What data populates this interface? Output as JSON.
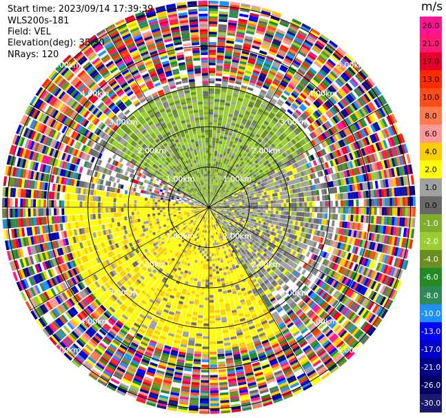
{
  "info": {
    "start_time": "Start time: 2023/09/14 17:39:39",
    "instrument": "WLS200s-181",
    "field": "Field: VEL",
    "elevation": "Elevation(deg): 35.30",
    "nrays": "NRays: 120"
  },
  "colorbar": {
    "unit": "m/s",
    "levels": [
      "26.0",
      "21.0",
      "17.0",
      "13.0",
      "10.0",
      "8.0",
      "6.0",
      "4.0",
      "2.0",
      "1.0",
      "0.0",
      "-1.0",
      "-2.0",
      "-4.0",
      "-6.0",
      "-8.0",
      "-10.0",
      "-13.0",
      "-17.0",
      "-21.0",
      "-26.0",
      "-30.0"
    ],
    "colors": [
      "#ff1493",
      "#ff1a75",
      "#e8002d",
      "#ff2a00",
      "#ff4d1a",
      "#ff7a4d",
      "#ff9999",
      "#ffcc00",
      "#ffff00",
      "#a0a0a0",
      "#696969",
      "#7fae2a",
      "#9acd32",
      "#6b8e23",
      "#228b22",
      "#2e8b57",
      "#1e90ff",
      "#0000ff",
      "#0000cd",
      "#00008b",
      "#000060",
      "#191970"
    ],
    "text_colors": [
      "#000",
      "#000",
      "#000",
      "#000",
      "#000",
      "#000",
      "#000",
      "#000",
      "#000",
      "#000",
      "#000",
      "#fff",
      "#fff",
      "#fff",
      "#fff",
      "#fff",
      "#fff",
      "#fff",
      "#fff",
      "#fff",
      "#fff",
      "#fff"
    ]
  },
  "chart_data": {
    "type": "heatmap",
    "projection": "polar-ppi",
    "field": "VEL",
    "units": "m/s",
    "nrays": 120,
    "range_rings_km": [
      1.0,
      2.0,
      3.0,
      4.0,
      5.0
    ],
    "ring_labels": [
      "1.00km",
      "2.00km",
      "3.00km",
      "4.00km",
      "5.00km"
    ],
    "radial_spokes_deg": [
      0,
      30,
      60,
      90,
      120,
      150,
      180,
      210,
      240,
      270,
      300,
      330
    ],
    "regions": [
      {
        "sector": "north",
        "range_km": [
          0,
          3.0
        ],
        "dominant_field": "-2.0 to -4.0 (green)"
      },
      {
        "sector": "south-southwest",
        "range_km": [
          0,
          3.5
        ],
        "dominant_field": "2.0 to 4.0 (yellow)"
      },
      {
        "sector": "east/west",
        "range_km": [
          0,
          2.5
        ],
        "dominant_field": "0.0 to 1.0 (gray)"
      },
      {
        "sector": "all",
        "range_km": [
          3.0,
          5.2
        ],
        "dominant_field": "noise (mixed)"
      }
    ]
  }
}
